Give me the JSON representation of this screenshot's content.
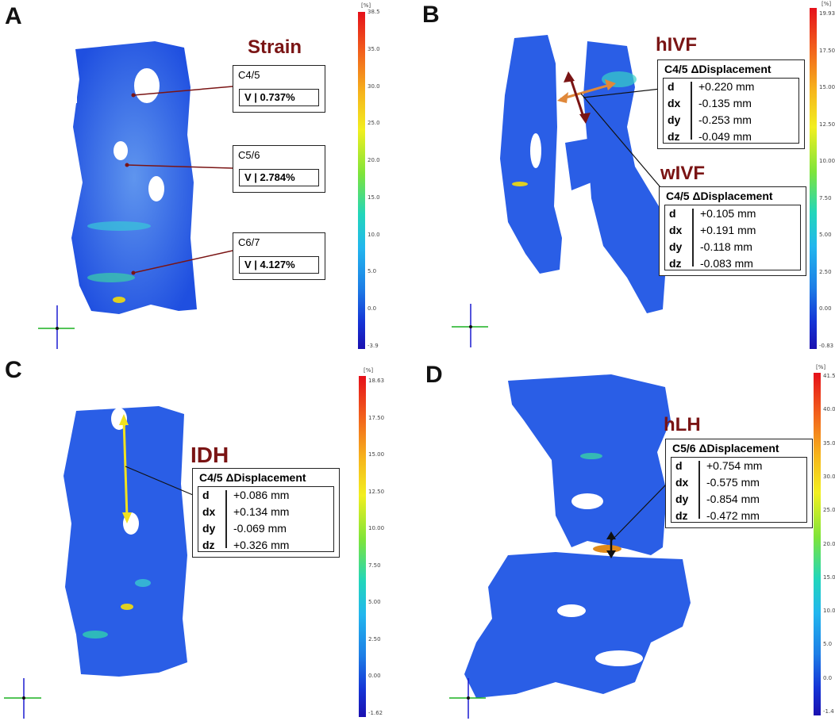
{
  "panels": {
    "A": {
      "label": "A",
      "title": "Strain",
      "boxes": [
        {
          "level": "C4/5",
          "value": "V | 0.737%"
        },
        {
          "level": "C5/6",
          "value": "V | 2.784%"
        },
        {
          "level": "C6/7",
          "value": "V | 4.127%"
        }
      ],
      "colorbar": {
        "unit": "[%]",
        "ticks": [
          "38.5",
          "35.0",
          "30.0",
          "25.0",
          "20.0",
          "15.0",
          "10.0",
          "5.0",
          "0.0",
          "-3.9"
        ]
      }
    },
    "B": {
      "label": "B",
      "titles": [
        "hIVF",
        "wIVF"
      ],
      "boxes": [
        {
          "header": "C4/5  ΔDisplacement",
          "rows": [
            [
              "d",
              "+0.220 mm"
            ],
            [
              "dx",
              "-0.135 mm"
            ],
            [
              "dy",
              "-0.253 mm"
            ],
            [
              "dz",
              "-0.049 mm"
            ]
          ]
        },
        {
          "header": "C4/5  ΔDisplacement",
          "rows": [
            [
              "d",
              "+0.105 mm"
            ],
            [
              "dx",
              "+0.191 mm"
            ],
            [
              "dy",
              "-0.118 mm"
            ],
            [
              "dz",
              "-0.083 mm"
            ]
          ]
        }
      ],
      "colorbar": {
        "unit": "[%]",
        "ticks": [
          "19.93",
          "17.50",
          "15.00",
          "12.50",
          "10.00",
          "7.50",
          "5.00",
          "2.50",
          "0.00",
          "-0.83"
        ]
      }
    },
    "C": {
      "label": "C",
      "title": "IDH",
      "boxes": [
        {
          "header": "C4/5  ΔDisplacement",
          "rows": [
            [
              "d",
              "+0.086 mm"
            ],
            [
              "dx",
              "+0.134 mm"
            ],
            [
              "dy",
              "-0.069 mm"
            ],
            [
              "dz",
              "+0.326 mm"
            ]
          ]
        }
      ],
      "colorbar": {
        "unit": "[%]",
        "ticks": [
          "18.63",
          "17.50",
          "15.00",
          "12.50",
          "10.00",
          "7.50",
          "5.00",
          "2.50",
          "0.00",
          "-1.62"
        ]
      }
    },
    "D": {
      "label": "D",
      "title": "hLH",
      "boxes": [
        {
          "header": "C5/6  ΔDisplacement",
          "rows": [
            [
              "d",
              "+0.754 mm"
            ],
            [
              "dx",
              "-0.575 mm"
            ],
            [
              "dy",
              "-0.854 mm"
            ],
            [
              "dz",
              "-0.472 mm"
            ]
          ]
        }
      ],
      "colorbar": {
        "unit": "[%]",
        "ticks": [
          "41.5",
          "40.0",
          "35.0",
          "30.0",
          "25.0",
          "20.0",
          "15.0",
          "10.0",
          "5.0",
          "0.0",
          "-1.4"
        ]
      }
    }
  },
  "colors": {
    "title": "#7a1414",
    "leader_dark": "#7a1414",
    "arrow_orange": "#e0883a",
    "arrow_yellow": "#f1e21f",
    "map_blue": "#2a5ee6"
  }
}
